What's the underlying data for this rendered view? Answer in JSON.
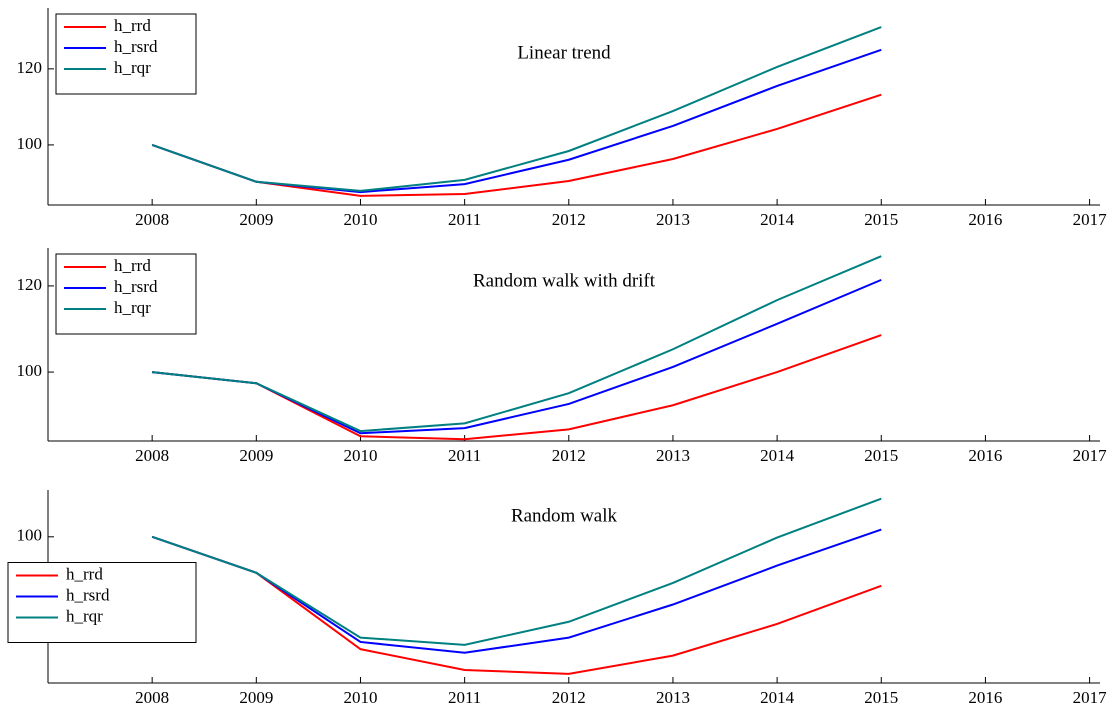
{
  "chart_data": [
    {
      "type": "line",
      "title": "Linear trend",
      "x": [
        2008,
        2009,
        2010,
        2011,
        2012,
        2013,
        2014,
        2015
      ],
      "series": [
        {
          "name": "h_rrd",
          "color": "#ff0000",
          "values": [
            100,
            90.3,
            86.6,
            87.1,
            90.5,
            96.3,
            104.2,
            113.2
          ]
        },
        {
          "name": "h_rsrd",
          "color": "#0000ff",
          "values": [
            100,
            90.3,
            87.6,
            89.7,
            96.1,
            105,
            115.5,
            125
          ]
        },
        {
          "name": "h_rqr",
          "color": "#008080",
          "values": [
            100,
            90.3,
            87.9,
            90.8,
            98.4,
            108.9,
            120.5,
            131
          ]
        }
      ],
      "xlim": [
        2007,
        2017.1
      ],
      "xticks": [
        2008,
        2009,
        2010,
        2011,
        2012,
        2013,
        2014,
        2015,
        2016,
        2017
      ],
      "ylim": [
        84.2,
        136
      ],
      "yticks": [
        100,
        120
      ],
      "legend": "upper left"
    },
    {
      "type": "line",
      "title": "Random walk with drift",
      "x": [
        2008,
        2009,
        2010,
        2011,
        2012,
        2013,
        2014,
        2015
      ],
      "series": [
        {
          "name": "h_rrd",
          "color": "#ff0000",
          "values": [
            100,
            97.4,
            85.1,
            84.4,
            86.7,
            92.3,
            100,
            108.6
          ]
        },
        {
          "name": "h_rsrd",
          "color": "#0000ff",
          "values": [
            100,
            97.4,
            85.8,
            87,
            92.6,
            101.2,
            111.2,
            121.4
          ]
        },
        {
          "name": "h_rqr",
          "color": "#008080",
          "values": [
            100,
            97.4,
            86.3,
            88.1,
            95.1,
            105.3,
            116.7,
            126.9
          ]
        }
      ],
      "xlim": [
        2007,
        2017.1
      ],
      "xticks": [
        2008,
        2009,
        2010,
        2011,
        2012,
        2013,
        2014,
        2015,
        2016,
        2017
      ],
      "ylim": [
        84,
        128.8
      ],
      "yticks": [
        100,
        120
      ],
      "legend": "upper left"
    },
    {
      "type": "line",
      "title": "Random walk",
      "x": [
        2008,
        2009,
        2010,
        2011,
        2012,
        2013,
        2014,
        2015
      ],
      "series": [
        {
          "name": "h_rrd",
          "color": "#ff0000",
          "values": [
            100,
            95,
            84.4,
            81.5,
            80.97,
            83.5,
            87.9,
            93.2
          ]
        },
        {
          "name": "h_rsrd",
          "color": "#0000ff",
          "values": [
            100,
            95,
            85.4,
            83.9,
            86,
            90.6,
            96,
            101
          ]
        },
        {
          "name": "h_rqr",
          "color": "#008080",
          "values": [
            100,
            95,
            86,
            85,
            88.2,
            93.6,
            99.9,
            105.3
          ]
        }
      ],
      "xlim": [
        2007,
        2017.1
      ],
      "xticks": [
        2008,
        2009,
        2010,
        2011,
        2012,
        2013,
        2014,
        2015,
        2016,
        2017
      ],
      "ylim": [
        79.7,
        106.5
      ],
      "yticks": [
        90,
        100
      ],
      "legend": "center left"
    }
  ]
}
